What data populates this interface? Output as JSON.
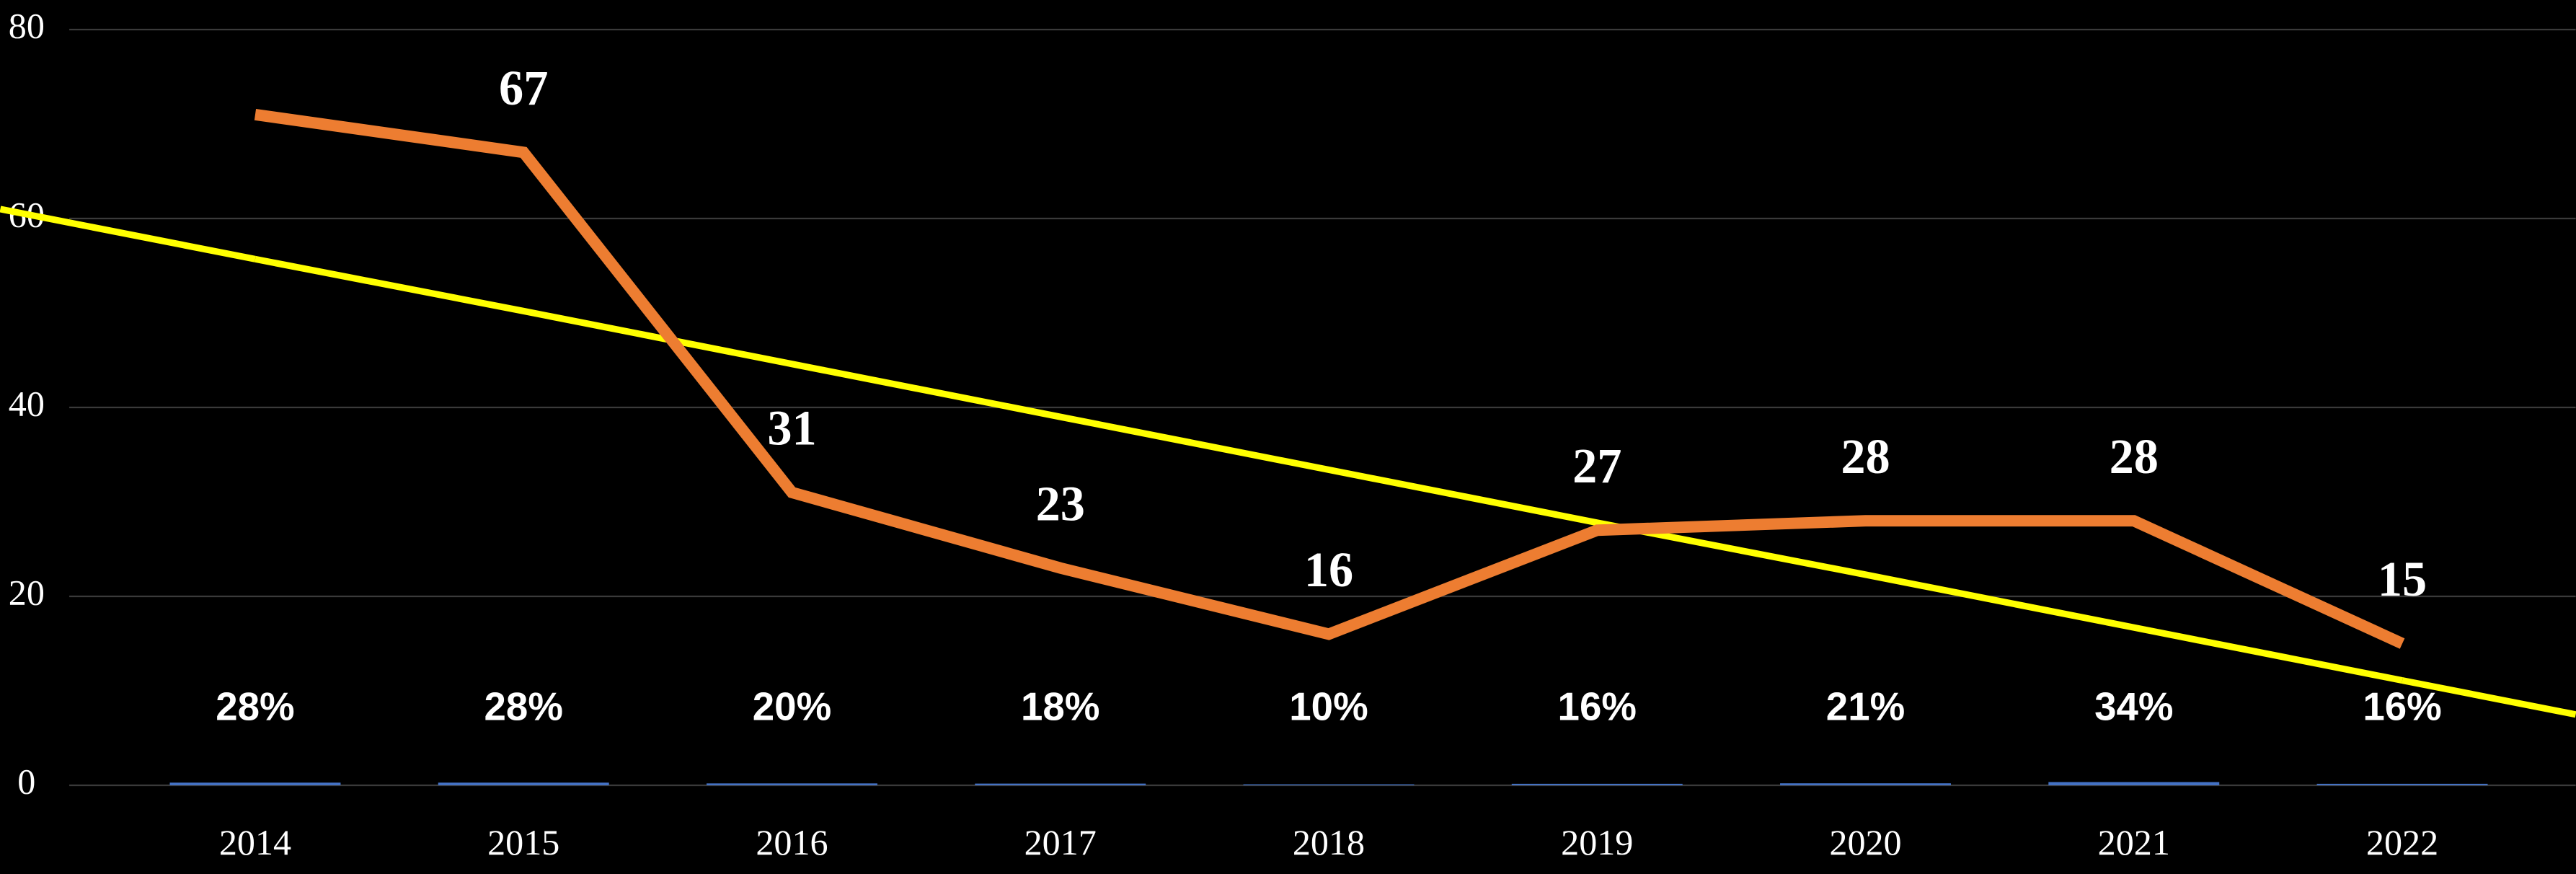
{
  "chart_data": {
    "type": "combo",
    "categories": [
      "2014",
      "2015",
      "2016",
      "2017",
      "2018",
      "2019",
      "2020",
      "2021",
      "2022"
    ],
    "series": [
      {
        "type": "bar",
        "color": "#4472c4",
        "values": [
          0.28,
          0.28,
          0.2,
          0.18,
          0.1,
          0.16,
          0.21,
          0.34,
          0.16
        ],
        "value_labels": [
          "28%",
          "28%",
          "20%",
          "18%",
          "10%",
          "16%",
          "21%",
          "34%",
          "16%"
        ]
      },
      {
        "type": "line",
        "color": "#ed7d31",
        "values": [
          71,
          67,
          31,
          23,
          16,
          27,
          28,
          28,
          15
        ],
        "value_labels": [
          null,
          "67",
          "31",
          "23",
          "16",
          "27",
          "28",
          "28",
          "15"
        ]
      },
      {
        "type": "trendline",
        "color": "#ffff00",
        "values": [
          55.7,
          50.2,
          44.6,
          39.0,
          33.4,
          27.8,
          22.3,
          16.7,
          11.1
        ]
      }
    ],
    "ylim": [
      0,
      80
    ],
    "yticks": [
      0,
      20,
      40,
      60,
      80
    ],
    "grid": true
  }
}
